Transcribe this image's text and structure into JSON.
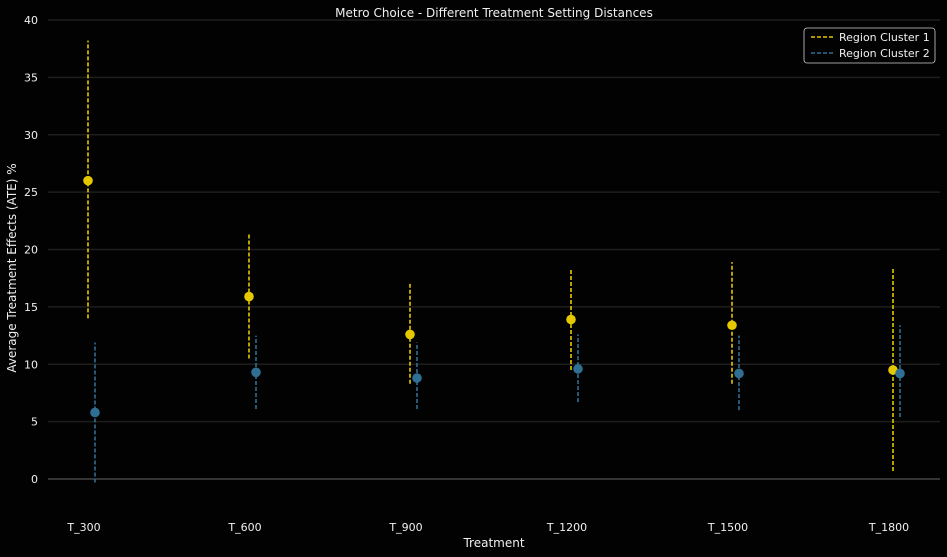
{
  "chart_data": {
    "type": "scatter",
    "title": "Metro Choice - Different Treatment Setting Distances",
    "xlabel": "Treatment",
    "ylabel": "Average Treatment Effects (ATE) %",
    "categories": [
      "T_300",
      "T_600",
      "T_900",
      "T_1200",
      "T_1500",
      "T_1800"
    ],
    "ylim": [
      -2.7,
      40
    ],
    "yticks": [
      0,
      5,
      10,
      15,
      20,
      25,
      30,
      35,
      40
    ],
    "grid": "horizontal",
    "legend_position": "top-right",
    "series": [
      {
        "name": "Region Cluster 1",
        "color": "#e5c800",
        "values": [
          26.0,
          15.9,
          12.6,
          13.9,
          13.4,
          9.5
        ],
        "lower": [
          14.0,
          10.5,
          8.3,
          9.5,
          8.3,
          0.7
        ],
        "upper": [
          38.2,
          21.4,
          17.0,
          18.3,
          18.9,
          18.3
        ]
      },
      {
        "name": "Region Cluster 2",
        "color": "#2f6f94",
        "values": [
          5.8,
          9.3,
          8.8,
          9.6,
          9.2,
          9.2
        ],
        "lower": [
          -0.3,
          6.1,
          6.1,
          6.7,
          6.0,
          5.4
        ],
        "upper": [
          11.9,
          12.5,
          11.9,
          12.6,
          12.5,
          13.4
        ]
      }
    ]
  }
}
